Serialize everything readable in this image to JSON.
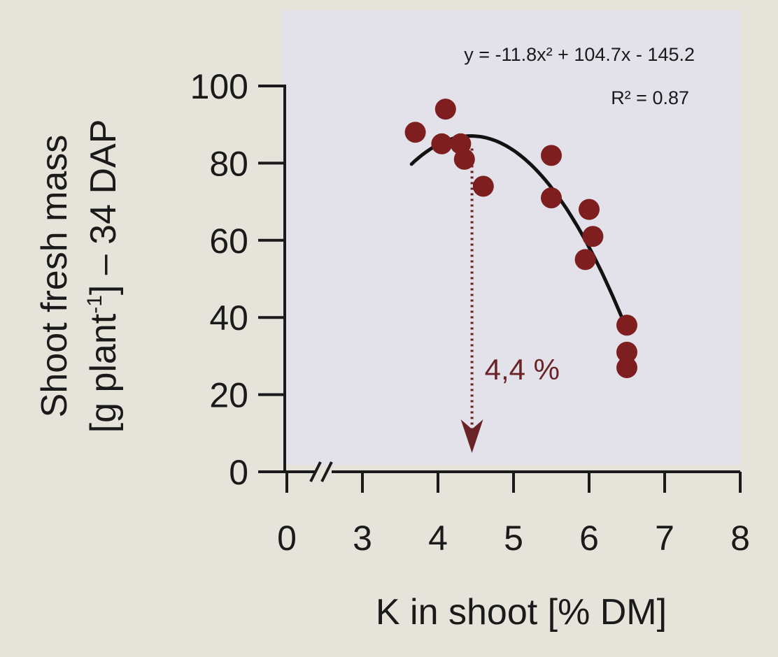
{
  "chart_data": {
    "type": "scatter",
    "xlabel": "K in shoot [% DM]",
    "ylabel_line1": "Shoot fresh mass",
    "ylabel_line2_prefix": "[g plant",
    "ylabel_line2_sup": "-1",
    "ylabel_line2_suffix": "] – 34 DAP",
    "x_tick_labels": [
      "0",
      "3",
      "4",
      "5",
      "6",
      "7",
      "8"
    ],
    "x_ticks": [
      0,
      3,
      4,
      5,
      6,
      7,
      8
    ],
    "y_tick_labels": [
      "0",
      "20",
      "40",
      "60",
      "80",
      "100"
    ],
    "y_ticks": [
      0,
      20,
      40,
      60,
      80,
      100
    ],
    "xlim": [
      3,
      8
    ],
    "ylim": [
      0,
      100
    ],
    "axis_break": true,
    "points": [
      {
        "x": 3.7,
        "y": 88
      },
      {
        "x": 4.1,
        "y": 94
      },
      {
        "x": 4.05,
        "y": 85
      },
      {
        "x": 4.3,
        "y": 85
      },
      {
        "x": 4.35,
        "y": 81
      },
      {
        "x": 4.6,
        "y": 74
      },
      {
        "x": 5.5,
        "y": 82
      },
      {
        "x": 5.5,
        "y": 71
      },
      {
        "x": 6.0,
        "y": 68
      },
      {
        "x": 6.05,
        "y": 61
      },
      {
        "x": 5.95,
        "y": 55
      },
      {
        "x": 6.5,
        "y": 38
      },
      {
        "x": 6.5,
        "y": 31
      },
      {
        "x": 6.5,
        "y": 27
      }
    ],
    "fit": {
      "equation": "y = -11.8x² + 104.7x - 145.2",
      "r2": "R² = 0.87",
      "a": -11.8,
      "b": 104.7,
      "c": -145.2,
      "x_range": [
        3.65,
        6.45
      ]
    },
    "annotation": {
      "text": "4,4 %",
      "x": 4.45
    },
    "colors": {
      "points": "#7e1e1e",
      "fit_line": "#111111",
      "annotation": "#6a2326",
      "plot_bg": "#e3e1ea",
      "page_bg": "#e6e4da",
      "axis": "#1a1a1a"
    }
  }
}
